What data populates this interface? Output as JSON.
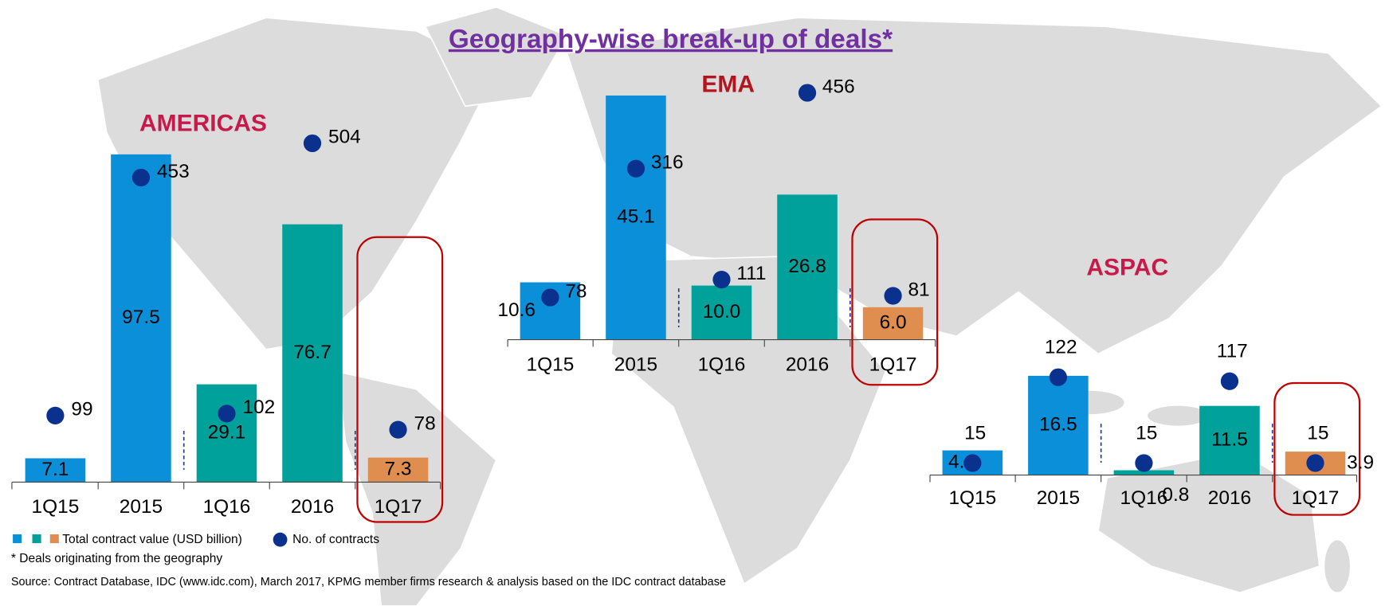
{
  "title": "Geography-wise break-up of deals*",
  "footnote": "* Deals originating from the geography",
  "source": "Source: Contract Database, IDC (www.idc.com), March 2017, KPMG member firms research & analysis based on the IDC contract database",
  "chart_data": [
    {
      "type": "bar",
      "title": "AMERICAS",
      "categories": [
        "1Q15",
        "2015",
        "1Q16",
        "2016",
        "1Q17"
      ],
      "ylim": [
        0,
        100
      ],
      "y2lim": [
        0,
        500
      ],
      "series": [
        {
          "name": "Total contract value (USD billion)",
          "colors": [
            "#0a8fd8",
            "#0a8fd8",
            "#00a19a",
            "#00a19a",
            "#e08e4f"
          ],
          "values": [
            7.1,
            97.5,
            29.1,
            76.7,
            7.3
          ]
        },
        {
          "name": "No. of contracts",
          "type": "scatter",
          "axis": "y2",
          "color": "#0b318f",
          "values": [
            99,
            453,
            102,
            504,
            78
          ]
        }
      ]
    },
    {
      "type": "bar",
      "title": "EMA",
      "categories": [
        "1Q15",
        "2015",
        "1Q16",
        "2016",
        "1Q17"
      ],
      "ylim": [
        0,
        50
      ],
      "y2lim": [
        0,
        500
      ],
      "series": [
        {
          "colors": [
            "#0a8fd8",
            "#0a8fd8",
            "#00a19a",
            "#00a19a",
            "#e08e4f"
          ],
          "values": [
            10.6,
            45.1,
            10,
            26.8,
            6
          ],
          "value_labels": [
            "10.6",
            "45.1",
            "10.0",
            "26.8",
            "6.0"
          ]
        },
        {
          "type": "scatter",
          "axis": "y2",
          "color": "#0b318f",
          "values": [
            78,
            316,
            111,
            456,
            81
          ]
        }
      ]
    },
    {
      "type": "bar",
      "title": "ASPAC",
      "categories": [
        "1Q15",
        "2015",
        "1Q16",
        "2016",
        "1Q17"
      ],
      "ylim": [
        0,
        20
      ],
      "y2lim": [
        0,
        150
      ],
      "series": [
        {
          "colors": [
            "#0a8fd8",
            "#0a8fd8",
            "#00a19a",
            "#00a19a",
            "#e08e4f"
          ],
          "values": [
            4.1,
            16.5,
            0.8,
            11.5,
            3.9
          ]
        },
        {
          "type": "scatter",
          "axis": "y2",
          "color": "#0b318f",
          "values": [
            15,
            122,
            15,
            117,
            15
          ]
        }
      ]
    }
  ]
}
